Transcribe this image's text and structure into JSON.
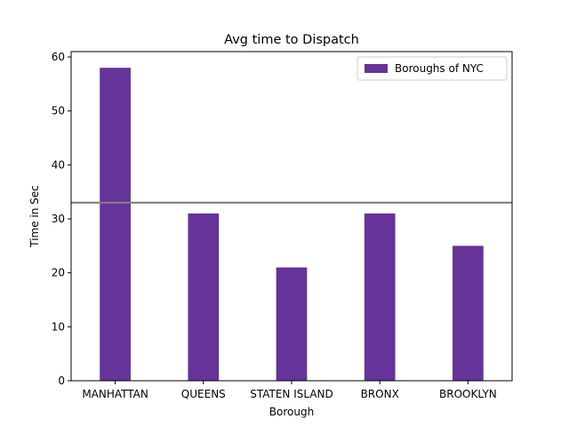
{
  "chart_data": {
    "type": "bar",
    "title": "Avg time to Dispatch",
    "xlabel": "Borough",
    "ylabel": "Time in Sec",
    "categories": [
      "MANHATTAN",
      "QUEENS",
      "STATEN ISLAND",
      "BRONX",
      "BROOKLYN"
    ],
    "series": [
      {
        "name": "Boroughs of NYC",
        "values": [
          58,
          31,
          21,
          31,
          25
        ],
        "color": "#663399"
      }
    ],
    "ylim": [
      0,
      61
    ],
    "yticks": [
      0,
      10,
      20,
      30,
      40,
      50,
      60
    ],
    "reference_line": {
      "value": 33,
      "color": "#808080"
    },
    "legend": {
      "position": "top-right"
    },
    "grid": false
  }
}
